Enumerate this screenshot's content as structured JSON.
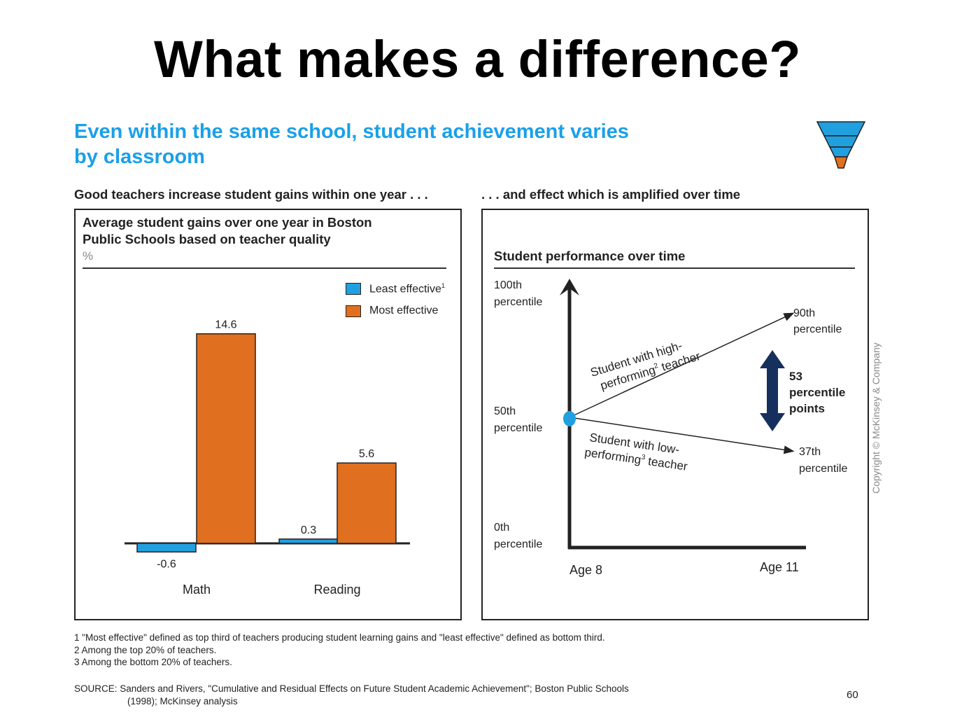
{
  "slide": {
    "title": "What makes a difference?",
    "headline_line1": "Even within the same school, student achievement varies",
    "headline_line2": "by classroom",
    "left_subhead": "Good teachers increase student gains within one year . . .",
    "right_subhead": ". . . and effect which is amplified over time",
    "footnotes": [
      "1 \"Most effective\" defined as top third of teachers producing student learning gains and \"least effective\" defined as bottom third.",
      "2 Among the top 20% of teachers.",
      "3 Among the bottom 20% of teachers."
    ],
    "source_line1": "SOURCE: Sanders and Rivers, \"Cumulative and Residual Effects on Future Student Academic Achievement\"; Boston Public Schools",
    "source_line2": "(1998); McKinsey analysis",
    "page_number": "60",
    "copyright": "Copyright © McKinsey & Company",
    "colors": {
      "least": "#21a0e0",
      "most": "#e07020",
      "accent_blue": "#1aa0e8",
      "arrow_navy": "#16305e"
    }
  },
  "chart_data": [
    {
      "type": "bar",
      "title_line1": "Average student gains over one year in Boston",
      "title_line2": "Public Schools based on teacher quality",
      "unit": "%",
      "categories": [
        "Math",
        "Reading"
      ],
      "series": [
        {
          "name": "Least effective",
          "name_sup": "1",
          "color": "#21a0e0",
          "values": [
            -0.6,
            0.3
          ],
          "labels": [
            "-0.6",
            "0.3"
          ]
        },
        {
          "name": "Most effective",
          "color": "#e07020",
          "values": [
            14.6,
            5.6
          ],
          "labels": [
            "14.6",
            "5.6"
          ]
        }
      ],
      "legend_position": "top-right",
      "grid": false
    },
    {
      "type": "line",
      "title": "Student performance over time",
      "y_ticks": [
        {
          "value": 100,
          "line1": "100th",
          "line2": "percentile"
        },
        {
          "value": 50,
          "line1": "50th",
          "line2": "percentile"
        },
        {
          "value": 0,
          "line1": "0th",
          "line2": "percentile"
        }
      ],
      "x_ticks": [
        {
          "value": 8,
          "label": "Age 8"
        },
        {
          "value": 11,
          "label": "Age 11"
        }
      ],
      "ylim": [
        0,
        100
      ],
      "xlim": [
        8,
        11
      ],
      "series": [
        {
          "line1": "Student with high-",
          "line2a": "performing",
          "sup": "2",
          "line2b": " teacher",
          "points": [
            [
              8,
              50
            ],
            [
              11,
              90
            ]
          ]
        },
        {
          "line1": "Student with low-",
          "line2a": "performing",
          "sup": "3",
          "line2b": " teacher",
          "points": [
            [
              8,
              50
            ],
            [
              11,
              37
            ]
          ]
        }
      ],
      "end_labels": [
        {
          "line1": "90th",
          "line2": "percentile"
        },
        {
          "line1": "37th",
          "line2": "percentile"
        }
      ],
      "difference": {
        "line1": "53",
        "line2": "percentile",
        "line3": "points"
      }
    }
  ]
}
